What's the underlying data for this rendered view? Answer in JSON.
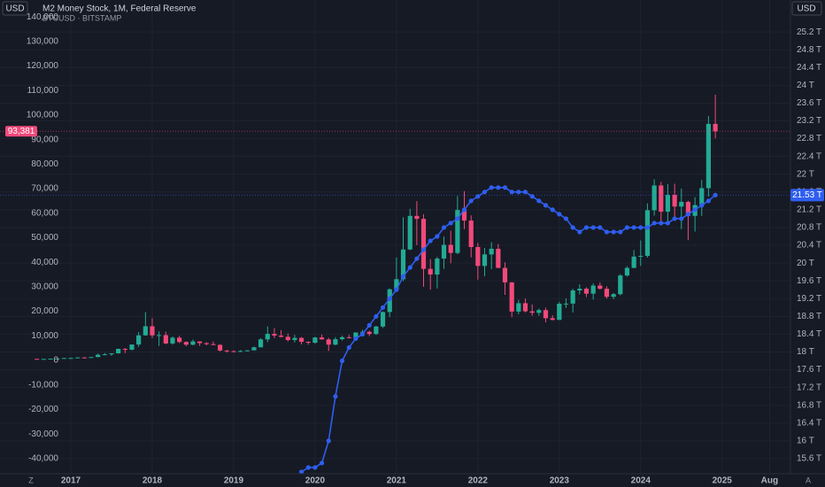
{
  "chart_data": {
    "type": "candlestick",
    "currency": "USD",
    "corner_labels": [
      "Z",
      "A"
    ],
    "grid": true,
    "xlim": [
      2016.13,
      2025.84
    ],
    "xticks": [
      2017,
      2018,
      2019,
      2020,
      2021,
      2022,
      2023,
      2024,
      2025,
      {
        "value": 2025.583,
        "label": "Aug"
      }
    ],
    "ylim": [
      -46200,
      146900
    ],
    "yticks": [
      {
        "value": 140000,
        "label": "140,000"
      },
      {
        "value": 130000,
        "label": "130,000"
      },
      {
        "value": 120000,
        "label": "120,000"
      },
      {
        "value": 110000,
        "label": "110,000"
      },
      {
        "value": 100000,
        "label": "100,000"
      },
      {
        "value": 90000,
        "label": "90,000"
      },
      {
        "value": 80000,
        "label": "80,000"
      },
      {
        "value": 70000,
        "label": "70,000"
      },
      {
        "value": 60000,
        "label": "60,000"
      },
      {
        "value": 50000,
        "label": "50,000"
      },
      {
        "value": 40000,
        "label": "40,000"
      },
      {
        "value": 30000,
        "label": "30,000"
      },
      {
        "value": 20000,
        "label": "20,000"
      },
      {
        "value": 10000,
        "label": "10,000"
      },
      0,
      {
        "value": -10000,
        "label": "-10,000"
      },
      {
        "value": -20000,
        "label": "-20,000"
      },
      {
        "value": -30000,
        "label": "-30,000"
      },
      {
        "value": -40000,
        "label": "-40,000"
      }
    ],
    "y2lim": [
      15.26,
      25.92
    ],
    "y2ticks": [
      {
        "value": 25.2,
        "label": "25.2 T"
      },
      {
        "value": 24.8,
        "label": "24.8 T"
      },
      {
        "value": 24.4,
        "label": "24.4 T"
      },
      {
        "value": 24,
        "label": "24 T"
      },
      {
        "value": 23.6,
        "label": "23.6 T"
      },
      {
        "value": 23.2,
        "label": "23.2 T"
      },
      {
        "value": 22.8,
        "label": "22.8 T"
      },
      {
        "value": 22.4,
        "label": "22.4 T"
      },
      {
        "value": 22,
        "label": "22 T"
      },
      {
        "value": 21.6,
        "label": "21.6 T"
      },
      {
        "value": 21.2,
        "label": "21.2 T"
      },
      {
        "value": 20.8,
        "label": "20.8 T"
      },
      {
        "value": 20.4,
        "label": "20.4 T"
      },
      {
        "value": 20,
        "label": "20 T"
      },
      {
        "value": 19.6,
        "label": "19.6 T"
      },
      {
        "value": 19.2,
        "label": "19.2 T"
      },
      {
        "value": 18.8,
        "label": "18.8 T"
      },
      {
        "value": 18.4,
        "label": "18.4 T"
      },
      {
        "value": 18,
        "label": "18 T"
      },
      {
        "value": 17.6,
        "label": "17.6 T"
      },
      {
        "value": 17.2,
        "label": "17.2 T"
      },
      {
        "value": 16.8,
        "label": "16.8 T"
      },
      {
        "value": 16.4,
        "label": "16.4 T"
      },
      {
        "value": 16,
        "label": "16 T"
      },
      {
        "value": 15.6,
        "label": "15.6 T"
      }
    ],
    "series": [
      {
        "type": "line",
        "name": "M2 Money Stock, 1M, Federal Reserve",
        "axis": "y2",
        "color": "#2f5ef0",
        "last_label": "21.53 T",
        "x": [
          2019.833,
          2019.917,
          2020,
          2020.083,
          2020.167,
          2020.25,
          2020.333,
          2020.417,
          2020.5,
          2020.583,
          2020.667,
          2020.75,
          2020.833,
          2020.917,
          2021,
          2021.083,
          2021.167,
          2021.25,
          2021.333,
          2021.417,
          2021.5,
          2021.583,
          2021.667,
          2021.75,
          2021.833,
          2021.917,
          2022,
          2022.083,
          2022.167,
          2022.25,
          2022.333,
          2022.417,
          2022.5,
          2022.583,
          2022.667,
          2022.75,
          2022.833,
          2022.917,
          2023,
          2023.083,
          2023.167,
          2023.25,
          2023.333,
          2023.417,
          2023.5,
          2023.583,
          2023.667,
          2023.75,
          2023.833,
          2023.917,
          2024,
          2024.083,
          2024.167,
          2024.25,
          2024.333,
          2024.417,
          2024.5,
          2024.583,
          2024.667,
          2024.75,
          2024.833,
          2024.917
        ],
        "values": [
          15.3,
          15.4,
          15.4,
          15.5,
          16.0,
          17.0,
          17.8,
          18.1,
          18.3,
          18.4,
          18.6,
          18.8,
          19.0,
          19.2,
          19.4,
          19.7,
          19.9,
          20.1,
          20.3,
          20.5,
          20.6,
          20.8,
          20.9,
          21.0,
          21.2,
          21.4,
          21.5,
          21.6,
          21.7,
          21.7,
          21.7,
          21.6,
          21.6,
          21.6,
          21.5,
          21.4,
          21.3,
          21.2,
          21.1,
          21.0,
          20.8,
          20.7,
          20.8,
          20.8,
          20.8,
          20.7,
          20.7,
          20.7,
          20.8,
          20.8,
          20.8,
          20.8,
          20.9,
          20.9,
          20.9,
          21.0,
          21.0,
          21.1,
          21.2,
          21.3,
          21.4,
          21.53
        ]
      },
      {
        "type": "candlestick",
        "name": "BTCUSD · BITSTAMP",
        "axis": "y",
        "up_color": "#22ab94",
        "down_color": "#f2497a",
        "last_label": "93,381",
        "x": [
          2016.583,
          2016.667,
          2016.75,
          2016.833,
          2016.917,
          2017,
          2017.083,
          2017.167,
          2017.25,
          2017.333,
          2017.417,
          2017.5,
          2017.583,
          2017.667,
          2017.75,
          2017.833,
          2017.917,
          2018,
          2018.083,
          2018.167,
          2018.25,
          2018.333,
          2018.417,
          2018.5,
          2018.583,
          2018.667,
          2018.75,
          2018.833,
          2018.917,
          2019,
          2019.083,
          2019.167,
          2019.25,
          2019.333,
          2019.417,
          2019.5,
          2019.583,
          2019.667,
          2019.75,
          2019.833,
          2019.917,
          2020,
          2020.083,
          2020.167,
          2020.25,
          2020.333,
          2020.417,
          2020.5,
          2020.583,
          2020.667,
          2020.75,
          2020.833,
          2020.917,
          2021,
          2021.083,
          2021.167,
          2021.25,
          2021.333,
          2021.417,
          2021.5,
          2021.583,
          2021.667,
          2021.75,
          2021.833,
          2021.917,
          2022,
          2022.083,
          2022.167,
          2022.25,
          2022.333,
          2022.417,
          2022.5,
          2022.583,
          2022.667,
          2022.75,
          2022.833,
          2022.917,
          2023,
          2023.083,
          2023.167,
          2023.25,
          2023.333,
          2023.417,
          2023.5,
          2023.583,
          2023.667,
          2023.75,
          2023.833,
          2023.917,
          2024,
          2024.083,
          2024.167,
          2024.25,
          2024.333,
          2024.417,
          2024.5,
          2024.583,
          2024.667,
          2024.75,
          2024.833,
          2024.917
        ],
        "open": [
          624,
          575,
          609,
          700,
          742,
          963,
          970,
          1190,
          1080,
          1350,
          2300,
          2480,
          2880,
          4700,
          4340,
          6460,
          10200,
          13900,
          10200,
          10300,
          6900,
          9250,
          7500,
          6400,
          7730,
          7030,
          6620,
          6320,
          4020,
          3740,
          3460,
          3820,
          4100,
          5330,
          8570,
          10800,
          10100,
          9600,
          8300,
          9150,
          7570,
          7190,
          9350,
          8540,
          6420,
          8630,
          9450,
          9140,
          11350,
          11650,
          10780,
          13800,
          19700,
          28990,
          33100,
          45200,
          58900,
          57700,
          37300,
          35000,
          41500,
          47100,
          43800,
          61300,
          57000,
          46200,
          38500,
          43200,
          45500,
          37700,
          31800,
          19900,
          23300,
          20000,
          19400,
          20500,
          17200,
          16500,
          23100,
          23150,
          28500,
          29200,
          27200,
          30500,
          29200,
          25900,
          27000,
          34600,
          37700,
          42300,
          42600,
          61200,
          71300,
          60600,
          67500,
          62700,
          64600,
          58900,
          63300,
          70200,
          96400
        ],
        "high": [
          626,
          630,
          720,
          755,
          980,
          1150,
          1210,
          1350,
          1420,
          2760,
          2980,
          2930,
          4770,
          4980,
          6470,
          11500,
          19700,
          17200,
          11800,
          11700,
          9750,
          9990,
          7760,
          8500,
          7760,
          7410,
          7680,
          6560,
          4240,
          4100,
          4200,
          4130,
          5640,
          9070,
          13880,
          13200,
          12330,
          10950,
          10400,
          9520,
          7750,
          9580,
          10500,
          9190,
          9480,
          10070,
          10390,
          11450,
          12480,
          12080,
          14100,
          19940,
          29300,
          41950,
          58350,
          61800,
          64900,
          59600,
          41300,
          42200,
          50500,
          52900,
          67000,
          69000,
          59100,
          47900,
          45800,
          48200,
          47400,
          40000,
          31900,
          24700,
          25200,
          22800,
          21100,
          21500,
          18400,
          23900,
          25250,
          29200,
          31000,
          29800,
          31400,
          31800,
          30200,
          27500,
          35200,
          38400,
          45000,
          48900,
          64000,
          73800,
          72800,
          71900,
          72000,
          70000,
          65100,
          66500,
          73600,
          99600,
          108300
        ],
        "low": [
          530,
          570,
          605,
          680,
          740,
          750,
          940,
          890,
          1060,
          1350,
          2100,
          1830,
          2670,
          2970,
          4110,
          5510,
          10100,
          9100,
          5900,
          6600,
          6420,
          7050,
          5760,
          6100,
          5880,
          6120,
          6200,
          3650,
          3130,
          3350,
          3390,
          3680,
          4070,
          5330,
          7440,
          9080,
          9350,
          7730,
          7300,
          6520,
          6430,
          6860,
          8450,
          3850,
          6150,
          8100,
          8900,
          8970,
          10950,
          9880,
          10370,
          13220,
          17600,
          28130,
          32300,
          45000,
          47000,
          30000,
          28800,
          29300,
          37300,
          39600,
          43300,
          53500,
          42000,
          32900,
          34300,
          37200,
          37600,
          26700,
          17600,
          18800,
          19600,
          18150,
          18200,
          15500,
          16300,
          16500,
          21400,
          19550,
          26900,
          25800,
          24800,
          28900,
          25200,
          24900,
          26500,
          34100,
          37600,
          38500,
          41900,
          59000,
          56500,
          56600,
          58400,
          53500,
          49000,
          52500,
          58900,
          66800,
          90500
        ],
        "close": [
          575,
          609,
          700,
          742,
          963,
          970,
          1190,
          1080,
          1350,
          2300,
          2480,
          2880,
          4700,
          4340,
          6460,
          10200,
          13900,
          10200,
          10300,
          6900,
          9250,
          7500,
          6400,
          7730,
          7030,
          6620,
          6320,
          4020,
          3740,
          3460,
          3820,
          4100,
          5330,
          8570,
          10800,
          10100,
          9600,
          8300,
          9150,
          7570,
          7190,
          9350,
          8540,
          6420,
          8630,
          9450,
          9140,
          11350,
          11650,
          10780,
          13800,
          19700,
          28990,
          33100,
          45200,
          58900,
          57700,
          37300,
          35000,
          41500,
          47100,
          43800,
          61300,
          57000,
          46200,
          38500,
          43200,
          45500,
          37700,
          31800,
          19900,
          23300,
          20000,
          19400,
          20500,
          17200,
          16500,
          23100,
          23150,
          28500,
          29200,
          27200,
          30500,
          29200,
          25900,
          27000,
          34600,
          37700,
          42300,
          42600,
          61200,
          71300,
          60600,
          67500,
          62700,
          64600,
          58900,
          63300,
          70200,
          96400,
          93381
        ]
      }
    ]
  }
}
